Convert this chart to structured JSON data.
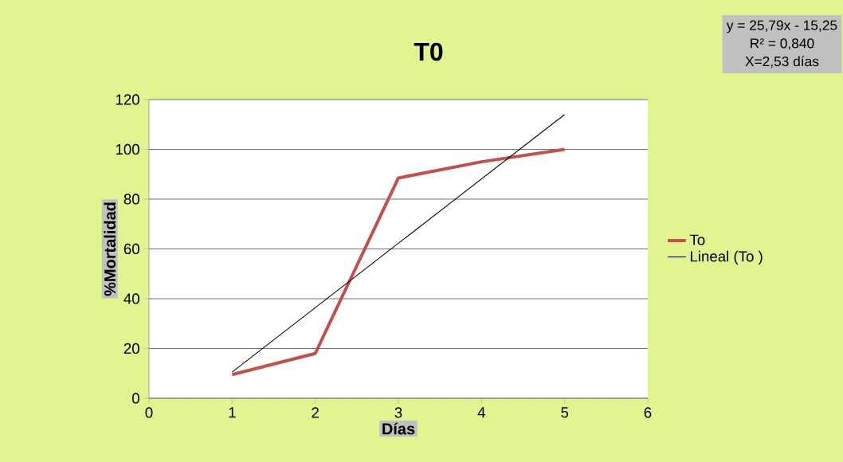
{
  "chart_data": {
    "type": "line",
    "title": "T0",
    "xlabel": "Días",
    "ylabel": "%Mortalidad",
    "x": [
      1,
      2,
      3,
      4,
      5
    ],
    "series": [
      {
        "name": "To",
        "color": "#c0504d",
        "values": [
          9.5,
          18,
          88.5,
          95,
          100
        ]
      },
      {
        "name": "Lineal (To )",
        "color": "#000000",
        "type": "line",
        "x": [
          1,
          5
        ],
        "values": [
          10.5,
          114
        ]
      }
    ],
    "xlim": [
      0,
      6
    ],
    "xticks": [
      0,
      1,
      2,
      3,
      4,
      5,
      6
    ],
    "ylim": [
      0,
      120
    ],
    "yticks": [
      0,
      20,
      40,
      60,
      80,
      100,
      120
    ],
    "grid": "y",
    "legend": "right",
    "marker": "none",
    "annotations": [
      "y = 25,79x - 15,25",
      "R² = 0,840",
      "X=2,53 días"
    ]
  }
}
